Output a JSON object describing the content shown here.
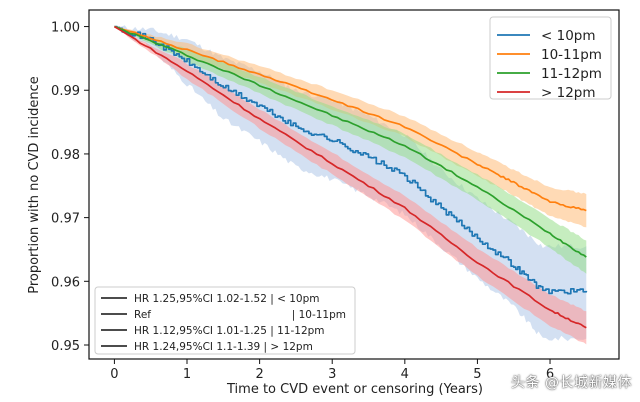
{
  "chart_data": {
    "type": "line",
    "title": "",
    "xlabel": "Time to CVD event or censoring (Years)",
    "ylabel": "Proportion with no CVD incidence",
    "xlim": [
      -0.35,
      6.95
    ],
    "ylim": [
      0.9478,
      1.0026
    ],
    "xticks": [
      0,
      1,
      2,
      3,
      4,
      5,
      6
    ],
    "xtick_labels": [
      "0",
      "1",
      "2",
      "3",
      "4",
      "5",
      "6"
    ],
    "yticks": [
      1.0,
      0.99,
      0.98,
      0.97,
      0.96,
      0.95
    ],
    "ytick_labels": [
      "1.00",
      "0.99",
      "0.98",
      "0.97",
      "0.96",
      "0.95"
    ],
    "grid": false,
    "legend_placement": "top-right",
    "series": [
      {
        "name": "< 10pm",
        "color": "#1f77b4",
        "band_color": "#aec7e8",
        "step": true,
        "x": [
          0,
          0.5,
          1,
          1.5,
          2,
          2.5,
          3,
          3.5,
          4,
          4.5,
          5,
          5.5,
          5.9,
          6.5
        ],
        "values": [
          1.0,
          0.998,
          0.9945,
          0.9905,
          0.9875,
          0.9842,
          0.9822,
          0.9795,
          0.9765,
          0.9715,
          0.9668,
          0.9625,
          0.9585,
          0.9585
        ],
        "ci_lower": [
          1.0,
          0.9965,
          0.991,
          0.9855,
          0.982,
          0.978,
          0.976,
          0.9735,
          0.9705,
          0.9655,
          0.9605,
          0.956,
          0.951,
          0.951
        ],
        "ci_upper": [
          1.0,
          0.9995,
          0.998,
          0.995,
          0.993,
          0.99,
          0.9885,
          0.986,
          0.983,
          0.9775,
          0.973,
          0.969,
          0.9655,
          0.9655
        ]
      },
      {
        "name": "10-11pm",
        "color": "#ff7f0e",
        "band_color": "#ffbb78",
        "step": false,
        "x": [
          0,
          1,
          2,
          3,
          4,
          5,
          5.5,
          6,
          6.5
        ],
        "values": [
          1.0,
          0.9963,
          0.9925,
          0.9885,
          0.9843,
          0.9784,
          0.9755,
          0.9725,
          0.9711
        ],
        "ci_lower": [
          1.0,
          0.9953,
          0.9912,
          0.987,
          0.9827,
          0.9765,
          0.9735,
          0.9702,
          0.9685
        ],
        "ci_upper": [
          1.0,
          0.9973,
          0.9938,
          0.99,
          0.9859,
          0.9803,
          0.9775,
          0.9748,
          0.9737
        ]
      },
      {
        "name": "11-12pm",
        "color": "#2ca02c",
        "band_color": "#98df8a",
        "step": false,
        "x": [
          0,
          1,
          2,
          3,
          4,
          5,
          6,
          6.5
        ],
        "values": [
          1.0,
          0.9955,
          0.9908,
          0.986,
          0.9813,
          0.9748,
          0.9675,
          0.9638
        ],
        "ci_lower": [
          1.0,
          0.9945,
          0.9895,
          0.9845,
          0.9795,
          0.9728,
          0.9652,
          0.9612
        ],
        "ci_upper": [
          1.0,
          0.9965,
          0.9921,
          0.9875,
          0.9831,
          0.9768,
          0.9698,
          0.9664
        ]
      },
      {
        "name": "> 12pm",
        "color": "#d62728",
        "band_color": "#ff9896",
        "step": false,
        "x": [
          0,
          1,
          2,
          3,
          4,
          5,
          6,
          6.5
        ],
        "values": [
          1.0,
          0.993,
          0.9855,
          0.9785,
          0.9715,
          0.963,
          0.9555,
          0.9527
        ],
        "ci_lower": [
          1.0,
          0.9918,
          0.984,
          0.9768,
          0.9696,
          0.9608,
          0.953,
          0.9501
        ],
        "ci_upper": [
          1.0,
          0.9942,
          0.987,
          0.9802,
          0.9734,
          0.9652,
          0.958,
          0.9553
        ]
      }
    ],
    "hr_legend": {
      "placement": "bottom-left",
      "entries": [
        "HR 1.25,95%CI 1.02-1.52 | < 10pm",
        "Ref                              | 10-11pm",
        "HR 1.12,95%CI 1.01-1.25 | 11-12pm",
        "HR 1.24,95%CI 1.1-1.39 | > 12pm"
      ],
      "entries_left": [
        "HR 1.25,95%CI 1.02-1.52 | < 10pm",
        "Ref",
        "HR 1.12,95%CI 1.01-1.25 | 11-12pm",
        "HR 1.24,95%CI 1.1-1.39 | > 12pm"
      ],
      "entries_right": [
        "",
        "| 10-11pm",
        "",
        ""
      ]
    }
  },
  "watermark": "头条 @长城新媒体"
}
